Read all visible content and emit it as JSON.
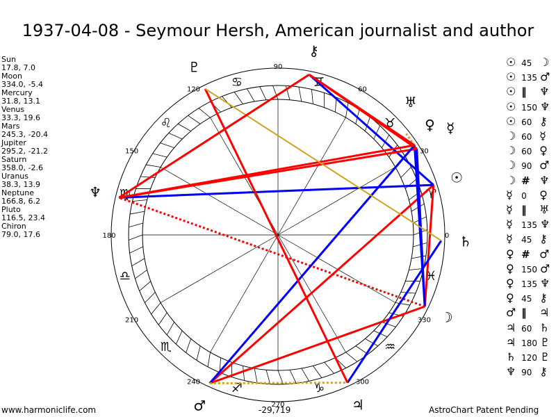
{
  "title": "1937-04-08 - Seymour Hersh, American journalist and author",
  "planets": [
    {
      "key": "sun",
      "name": "Sun",
      "coords": "17.8, 7.0",
      "lon": 17.8,
      "glyph": "☉"
    },
    {
      "key": "moon",
      "name": "Moon",
      "coords": "334.0, -5.4",
      "lon": 334.0,
      "glyph": "☽"
    },
    {
      "key": "mercury",
      "name": "Mercury",
      "coords": "31.8, 13.1",
      "lon": 31.8,
      "glyph": "☿"
    },
    {
      "key": "venus",
      "name": "Venus",
      "coords": "33.3, 19.6",
      "lon": 33.3,
      "glyph": "♀"
    },
    {
      "key": "mars",
      "name": "Mars",
      "coords": "245.3, -20.4",
      "lon": 245.3,
      "glyph": "♂"
    },
    {
      "key": "jupiter",
      "name": "Jupiter",
      "coords": "295.2, -21.2",
      "lon": 295.2,
      "glyph": "♃"
    },
    {
      "key": "saturn",
      "name": "Saturn",
      "coords": "358.0, -2.6",
      "lon": 358.0,
      "glyph": "♄"
    },
    {
      "key": "uranus",
      "name": "Uranus",
      "coords": "38.3, 13.9",
      "lon": 38.3,
      "glyph": "♅"
    },
    {
      "key": "neptune",
      "name": "Neptune",
      "coords": "166.8, 6.2",
      "lon": 166.8,
      "glyph": "♆"
    },
    {
      "key": "pluto",
      "name": "Pluto",
      "coords": "116.5, 23.4",
      "lon": 116.5,
      "glyph": "♇"
    },
    {
      "key": "chiron",
      "name": "Chiron",
      "coords": "79.0, 17.6",
      "lon": 79.0,
      "glyph": "⚷"
    }
  ],
  "aspects": [
    {
      "a": "sun",
      "b": "moon",
      "type": "45"
    },
    {
      "a": "sun",
      "b": "mars",
      "type": "135"
    },
    {
      "a": "sun",
      "b": "neptune",
      "type": "||"
    },
    {
      "a": "sun",
      "b": "neptune",
      "type": "150"
    },
    {
      "a": "sun",
      "b": "chiron",
      "type": "60"
    },
    {
      "a": "moon",
      "b": "mercury",
      "type": "60"
    },
    {
      "a": "moon",
      "b": "venus",
      "type": "60"
    },
    {
      "a": "moon",
      "b": "mars",
      "type": "90"
    },
    {
      "a": "moon",
      "b": "neptune",
      "type": "#"
    },
    {
      "a": "mercury",
      "b": "venus",
      "type": "0"
    },
    {
      "a": "mercury",
      "b": "uranus",
      "type": "||"
    },
    {
      "a": "mercury",
      "b": "neptune",
      "type": "135"
    },
    {
      "a": "mercury",
      "b": "chiron",
      "type": "45"
    },
    {
      "a": "venus",
      "b": "mars",
      "type": "#"
    },
    {
      "a": "venus",
      "b": "mars",
      "type": "150"
    },
    {
      "a": "venus",
      "b": "neptune",
      "type": "135"
    },
    {
      "a": "venus",
      "b": "chiron",
      "type": "45"
    },
    {
      "a": "mars",
      "b": "jupiter",
      "type": "||"
    },
    {
      "a": "jupiter",
      "b": "saturn",
      "type": "60"
    },
    {
      "a": "jupiter",
      "b": "pluto",
      "type": "180"
    },
    {
      "a": "saturn",
      "b": "pluto",
      "type": "120"
    },
    {
      "a": "neptune",
      "b": "chiron",
      "type": "90"
    }
  ],
  "aspect_symbols": {
    "||": "‖",
    "#": "#"
  },
  "signs": [
    "♈",
    "♉",
    "♊",
    "♋",
    "♌",
    "♍",
    "♎",
    "♏",
    "♐",
    "♑",
    "♒",
    "♓"
  ],
  "degree_labels": [
    "0",
    "30",
    "60",
    "90",
    "120",
    "150",
    "180",
    "210",
    "240",
    "270",
    "300",
    "330"
  ],
  "colors": {
    "hard": "#ff0000",
    "soft": "#0000ff",
    "trine": "#d4a020",
    "parallel": "#d4a020",
    "contra": "#ff0000"
  },
  "footer": {
    "left": "www.harmoniclife.com",
    "center": "-29,719",
    "right": "AstroChart Patent Pending"
  }
}
